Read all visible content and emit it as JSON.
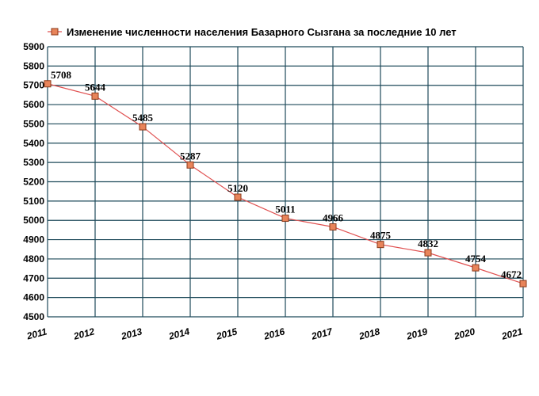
{
  "chart_data": {
    "type": "line",
    "title": "Изменение численности населения Базарного Сызгана за последние 10 лет",
    "legend": {
      "placement": "top",
      "entries": [
        "Изменение численности населения Базарного Сызгана за последние 10 лет"
      ]
    },
    "x": [
      "2011",
      "2012",
      "2013",
      "2014",
      "2015",
      "2016",
      "2017",
      "2018",
      "2019",
      "2020",
      "2021"
    ],
    "series": [
      {
        "name": "Изменение численности населения Базарного Сызгана за последние 10 лет",
        "values": [
          5708,
          5644,
          5485,
          5287,
          5120,
          5011,
          4966,
          4875,
          4832,
          4754,
          4672
        ],
        "labels": [
          "5708",
          "5644",
          "5485",
          "5287",
          "5120",
          "5011",
          "4966",
          "4875",
          "4832",
          "4754",
          "4672"
        ]
      }
    ],
    "y_ticks": [
      "4500",
      "4600",
      "4700",
      "4800",
      "4900",
      "5000",
      "5100",
      "5200",
      "5300",
      "5400",
      "5500",
      "5600",
      "5700",
      "5800",
      "5900"
    ],
    "ylim": [
      4500,
      5900
    ],
    "grid": true,
    "colors": {
      "line": "#e05050",
      "marker_fill": "#e8845a",
      "marker_stroke": "#8b3a1a",
      "grid": "#1e4a5a"
    }
  }
}
